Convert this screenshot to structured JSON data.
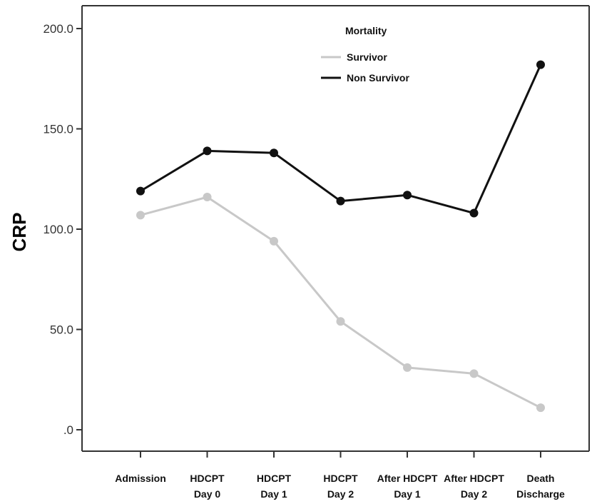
{
  "chart_data": {
    "type": "line",
    "title": "",
    "xlabel": "",
    "ylabel": "CRP",
    "ylim": [
      0,
      200
    ],
    "yticks": [
      0,
      50,
      100,
      150,
      200
    ],
    "ytick_labels": [
      ".0",
      "50.0",
      "100.0",
      "150.0",
      "200.0"
    ],
    "categories": [
      [
        "Admission"
      ],
      [
        "HDCPT",
        "Day 0"
      ],
      [
        "HDCPT",
        "Day 1"
      ],
      [
        "HDCPT",
        "Day 2"
      ],
      [
        "After HDCPT",
        "Day 1"
      ],
      [
        "After HDCPT",
        "Day 2"
      ],
      [
        "Death",
        "Discharge"
      ]
    ],
    "legend": {
      "title": "Mortality",
      "placement": "top-right"
    },
    "grid": false,
    "series": [
      {
        "name": "Survivor",
        "color": "#c8c8c8",
        "values": [
          107,
          116,
          94,
          54,
          31,
          28,
          11
        ]
      },
      {
        "name": "Non Survivor",
        "color": "#111111",
        "values": [
          119,
          139,
          138,
          114,
          117,
          108,
          182
        ]
      }
    ]
  }
}
